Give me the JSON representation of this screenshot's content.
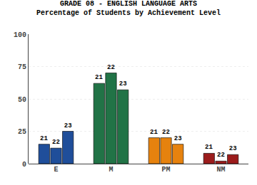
{
  "chart_data": {
    "type": "bar",
    "title": "GRADE 08 - ENGLISH LANGUAGE ARTS",
    "subtitle": "Percentage of Students by Achievement Level",
    "categories": [
      "E",
      "M",
      "PM",
      "NM"
    ],
    "series": [
      {
        "name": "21",
        "values": [
          15,
          62,
          20,
          8
        ],
        "colors": [
          "#1f4e9a",
          "#217346",
          "#e6820e",
          "#9b1c1c"
        ]
      },
      {
        "name": "22",
        "values": [
          12,
          70,
          20,
          2
        ],
        "colors": [
          "#1f4e9a",
          "#217346",
          "#e6820e",
          "#9b1c1c"
        ]
      },
      {
        "name": "23",
        "values": [
          25,
          57,
          15,
          7
        ],
        "colors": [
          "#1f4e9a",
          "#217346",
          "#e6820e",
          "#9b1c1c"
        ]
      }
    ],
    "ylim": [
      0,
      100
    ],
    "yticks": [
      0,
      25,
      50,
      75,
      100
    ],
    "grid": true
  }
}
